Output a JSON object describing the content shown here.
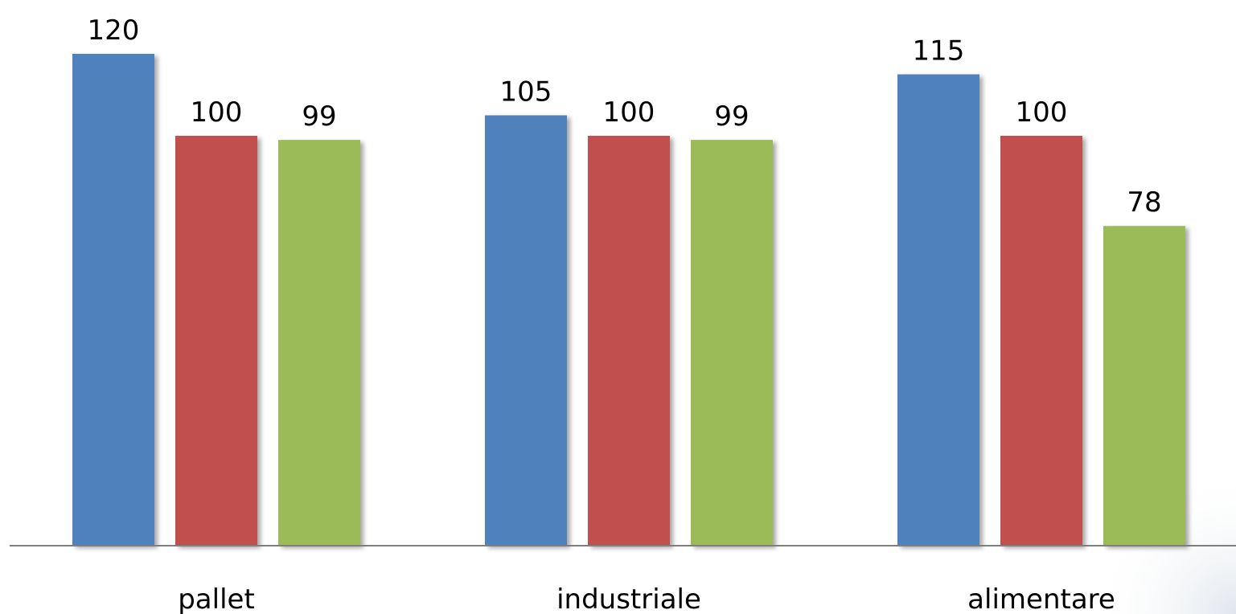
{
  "chart_data": {
    "type": "bar",
    "categories": [
      "pallet",
      "industriale",
      "alimentare"
    ],
    "series": [
      {
        "color": "#4F81BD",
        "values": [
          120,
          105,
          115
        ]
      },
      {
        "color": "#C0504D",
        "values": [
          100,
          100,
          100
        ]
      },
      {
        "color": "#9BBB59",
        "values": [
          99,
          99,
          78
        ]
      }
    ],
    "ylim": [
      0,
      120
    ],
    "grid": false,
    "legend": "none",
    "axis_color": "#7F7F7F"
  }
}
